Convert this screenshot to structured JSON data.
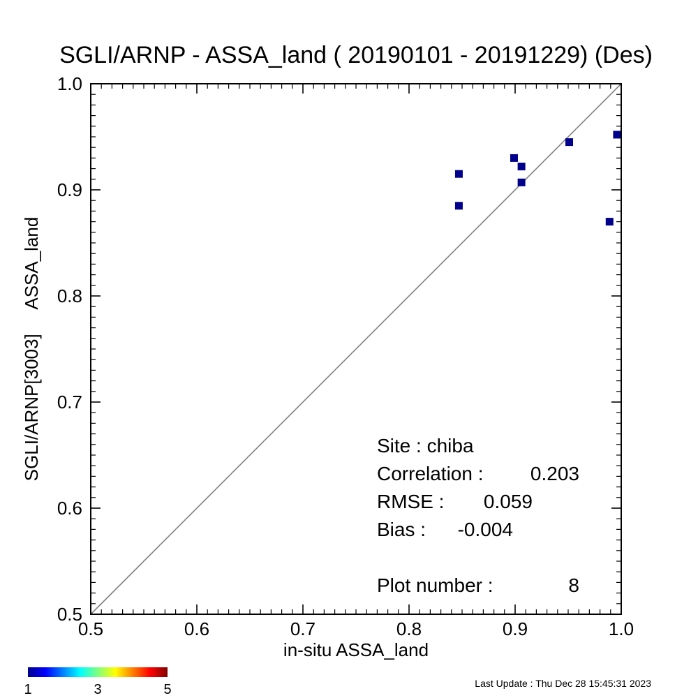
{
  "chart_data": {
    "type": "scatter",
    "title": "SGLI/ARNP - ASSA_land ( 20190101 - 20191229) (Des)",
    "xlabel": "in-situ ASSA_land",
    "ylabel": "SGLI/ARNP[3003]     ASSA_land",
    "xlim": [
      0.5,
      1.0
    ],
    "ylim": [
      0.5,
      1.0
    ],
    "x_ticks": [
      "0.5",
      "0.6",
      "0.7",
      "0.8",
      "0.9",
      "1.0"
    ],
    "y_ticks": [
      "0.5",
      "0.6",
      "0.7",
      "0.8",
      "0.9",
      "1.0"
    ],
    "reference_line": "1:1",
    "marker_color": "#00008b",
    "points": [
      {
        "x": 0.847,
        "y": 0.915
      },
      {
        "x": 0.847,
        "y": 0.885
      },
      {
        "x": 0.899,
        "y": 0.93
      },
      {
        "x": 0.906,
        "y": 0.922
      },
      {
        "x": 0.906,
        "y": 0.907
      },
      {
        "x": 0.951,
        "y": 0.945
      },
      {
        "x": 0.989,
        "y": 0.87
      },
      {
        "x": 0.996,
        "y": 0.952
      }
    ],
    "stats": {
      "site_label": "Site : chiba",
      "correlation_label": "Correlation :",
      "correlation_value": "0.203",
      "rmse_label": "RMSE :",
      "rmse_value": "0.059",
      "bias_label": "Bias :",
      "bias_value": "-0.004",
      "plot_number_label": "Plot number :",
      "plot_number_value": "8"
    },
    "colorbar": {
      "labels": [
        "1",
        "3",
        "5"
      ],
      "colors": [
        "#00008f",
        "#0000ff",
        "#00ffff",
        "#ffff00",
        "#ff0000",
        "#800000"
      ]
    },
    "footer": "Last Update : Thu Dec 28 15:45:31 2023"
  }
}
